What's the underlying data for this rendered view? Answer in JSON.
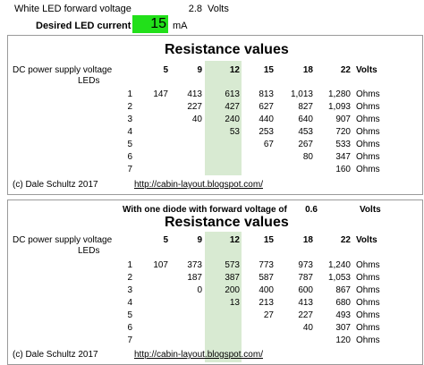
{
  "header": {
    "white_led_label": "White LED forward voltage",
    "white_led_value": "2.8",
    "white_led_unit": "Volts",
    "current_label": "Desired LED current",
    "current_value": "15",
    "current_unit": "mA"
  },
  "colors": {
    "highlight": "#d8ead2",
    "current_box": "#22e01a",
    "border": "#9a9a9a"
  },
  "table1": {
    "title": "Resistance values",
    "voltage_label": "DC power supply voltage",
    "leds_label": "LEDs",
    "voltages": [
      "5",
      "9",
      "12",
      "15",
      "18",
      "22"
    ],
    "volts_label": "Volts",
    "rows": [
      {
        "led": "1",
        "values": [
          "147",
          "413",
          "613",
          "813",
          "1,013",
          "1,280"
        ],
        "unit": "Ohms"
      },
      {
        "led": "2",
        "values": [
          "",
          "227",
          "427",
          "627",
          "827",
          "1,093"
        ],
        "unit": "Ohms"
      },
      {
        "led": "3",
        "values": [
          "",
          "40",
          "240",
          "440",
          "640",
          "907"
        ],
        "unit": "Ohms"
      },
      {
        "led": "4",
        "values": [
          "",
          "",
          "53",
          "253",
          "453",
          "720"
        ],
        "unit": "Ohms"
      },
      {
        "led": "5",
        "values": [
          "",
          "",
          "",
          "67",
          "267",
          "533"
        ],
        "unit": "Ohms"
      },
      {
        "led": "6",
        "values": [
          "",
          "",
          "",
          "",
          "80",
          "347"
        ],
        "unit": "Ohms"
      },
      {
        "led": "7",
        "values": [
          "",
          "",
          "",
          "",
          "",
          "160"
        ],
        "unit": "Ohms"
      }
    ],
    "credit": "(c) Dale Schultz 2017",
    "link": "http://cabin-layout.blogspot.com/"
  },
  "table2": {
    "diode_label": "With one diode with forward voltage of",
    "diode_value": "0.6",
    "diode_unit": "Volts",
    "title": "Resistance values",
    "voltage_label": "DC power supply voltage",
    "leds_label": "LEDs",
    "voltages": [
      "5",
      "9",
      "12",
      "15",
      "18",
      "22"
    ],
    "volts_label": "Volts",
    "rows": [
      {
        "led": "1",
        "values": [
          "107",
          "373",
          "573",
          "773",
          "973",
          "1,240"
        ],
        "unit": "Ohms"
      },
      {
        "led": "2",
        "values": [
          "",
          "187",
          "387",
          "587",
          "787",
          "1,053"
        ],
        "unit": "Ohms"
      },
      {
        "led": "3",
        "values": [
          "",
          "0",
          "200",
          "400",
          "600",
          "867"
        ],
        "unit": "Ohms"
      },
      {
        "led": "4",
        "values": [
          "",
          "",
          "13",
          "213",
          "413",
          "680"
        ],
        "unit": "Ohms"
      },
      {
        "led": "5",
        "values": [
          "",
          "",
          "",
          "27",
          "227",
          "493"
        ],
        "unit": "Ohms"
      },
      {
        "led": "6",
        "values": [
          "",
          "",
          "",
          "",
          "40",
          "307"
        ],
        "unit": "Ohms"
      },
      {
        "led": "7",
        "values": [
          "",
          "",
          "",
          "",
          "",
          "120"
        ],
        "unit": "Ohms"
      }
    ],
    "credit": "(c) Dale Schultz 2017",
    "link": "http://cabin-layout.blogspot.com/"
  }
}
